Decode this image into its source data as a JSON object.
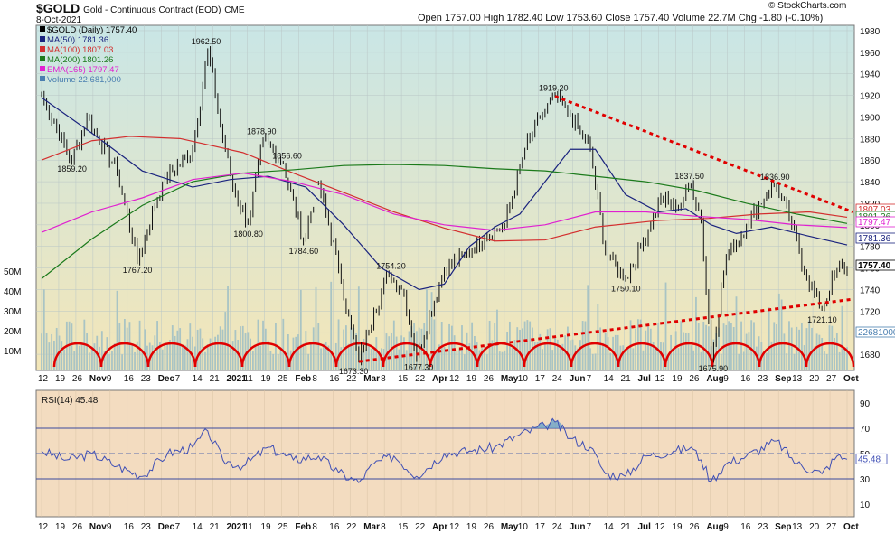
{
  "header": {
    "symbol": "$GOLD",
    "name": "Gold - Continuous Contract (EOD)",
    "exchange": "CME",
    "date": "8-Oct-2021",
    "source": "© StockCharts.com",
    "ohlc_text": "Open 1757.00  High 1782.40  Low 1753.60  Close 1757.40  Volume 22.7M  Chg -1.80 (-0.10%)"
  },
  "legend": [
    {
      "label": "$GOLD (Daily) 1757.40",
      "color": "#000000"
    },
    {
      "label": "MA(50) 1781.36",
      "color": "#1a237e"
    },
    {
      "label": "MA(100) 1807.03",
      "color": "#d32f2f"
    },
    {
      "label": "MA(200) 1801.26",
      "color": "#1b7a1b"
    },
    {
      "label": "EMA(165) 1797.47",
      "color": "#e020d0"
    },
    {
      "label": "Volume 22,681,000",
      "color": "#4a7fb0"
    }
  ],
  "colors": {
    "price_bg_top": "#c9e6e6",
    "price_bg_bottom": "#f3e6b8",
    "rsi_bg": "#f3dcc0",
    "trendline": "#e00000",
    "cycle_arcs": "#e00000",
    "volume": "#a9c4c4",
    "rsi_line": "#3f4fb5"
  },
  "chart_data": [
    {
      "type": "line",
      "title": "$GOLD Gold - Continuous Contract (EOD) CME",
      "ylabel": "",
      "ylim": [
        1665,
        1985
      ],
      "y_ticks": [
        1680,
        1700,
        1720,
        1740,
        1760,
        1780,
        1800,
        1820,
        1840,
        1860,
        1880,
        1900,
        1920,
        1940,
        1960,
        1980
      ],
      "x_tick_labels": [
        "12",
        "19",
        "26",
        "Nov",
        "9",
        "16",
        "23",
        "Dec",
        "7",
        "14",
        "21",
        "2021",
        "11",
        "19",
        "25",
        "Feb",
        "8",
        "16",
        "22",
        "Mar",
        "8",
        "15",
        "22",
        "Apr",
        "12",
        "19",
        "26",
        "May",
        "10",
        "17",
        "24",
        "Jun",
        "7",
        "14",
        "21",
        "Jul",
        "12",
        "19",
        "26",
        "Aug",
        "9",
        "16",
        "23",
        "Sep",
        "13",
        "20",
        "27",
        "Oct"
      ],
      "bold_ticks": [
        "Nov",
        "Dec",
        "2021",
        "Feb",
        "Mar",
        "Apr",
        "May",
        "Jun",
        "Jul",
        "Aug",
        "Sep",
        "Oct"
      ],
      "anchors": [
        {
          "x": 0,
          "y": 1920
        },
        {
          "x": 12,
          "y": 1859.2
        },
        {
          "x": 18,
          "y": 1900
        },
        {
          "x": 30,
          "y": 1850
        },
        {
          "x": 38,
          "y": 1767.2
        },
        {
          "x": 48,
          "y": 1840
        },
        {
          "x": 60,
          "y": 1870
        },
        {
          "x": 66,
          "y": 1962.5
        },
        {
          "x": 72,
          "y": 1880
        },
        {
          "x": 76,
          "y": 1835
        },
        {
          "x": 82,
          "y": 1800.8
        },
        {
          "x": 88,
          "y": 1878.9
        },
        {
          "x": 96,
          "y": 1856.6
        },
        {
          "x": 104,
          "y": 1784.6
        },
        {
          "x": 110,
          "y": 1840
        },
        {
          "x": 118,
          "y": 1760
        },
        {
          "x": 122,
          "y": 1715
        },
        {
          "x": 126,
          "y": 1673.3
        },
        {
          "x": 132,
          "y": 1720
        },
        {
          "x": 138,
          "y": 1754.2
        },
        {
          "x": 144,
          "y": 1738
        },
        {
          "x": 149,
          "y": 1677.3
        },
        {
          "x": 160,
          "y": 1760
        },
        {
          "x": 168,
          "y": 1770
        },
        {
          "x": 176,
          "y": 1790
        },
        {
          "x": 184,
          "y": 1800
        },
        {
          "x": 192,
          "y": 1870
        },
        {
          "x": 198,
          "y": 1900
        },
        {
          "x": 204,
          "y": 1919.2
        },
        {
          "x": 210,
          "y": 1900
        },
        {
          "x": 218,
          "y": 1870
        },
        {
          "x": 224,
          "y": 1775
        },
        {
          "x": 232,
          "y": 1750.1
        },
        {
          "x": 238,
          "y": 1780
        },
        {
          "x": 246,
          "y": 1825
        },
        {
          "x": 252,
          "y": 1815
        },
        {
          "x": 258,
          "y": 1837.5
        },
        {
          "x": 262,
          "y": 1805
        },
        {
          "x": 266,
          "y": 1675.9
        },
        {
          "x": 272,
          "y": 1770
        },
        {
          "x": 280,
          "y": 1800
        },
        {
          "x": 288,
          "y": 1830
        },
        {
          "x": 292,
          "y": 1836.9
        },
        {
          "x": 298,
          "y": 1800
        },
        {
          "x": 304,
          "y": 1750
        },
        {
          "x": 310,
          "y": 1721.1
        },
        {
          "x": 316,
          "y": 1760
        },
        {
          "x": 320,
          "y": 1757.4
        }
      ],
      "series": [
        {
          "name": "MA(50)",
          "anchors": [
            [
              0,
              1918
            ],
            [
              20,
              1885
            ],
            [
              40,
              1850
            ],
            [
              60,
              1835
            ],
            [
              75,
              1842
            ],
            [
              90,
              1845
            ],
            [
              105,
              1835
            ],
            [
              120,
              1800
            ],
            [
              135,
              1760
            ],
            [
              150,
              1740
            ],
            [
              160,
              1745
            ],
            [
              170,
              1780
            ],
            [
              180,
              1798
            ],
            [
              190,
              1810
            ],
            [
              200,
              1840
            ],
            [
              210,
              1870
            ],
            [
              220,
              1870
            ],
            [
              232,
              1828
            ],
            [
              245,
              1812
            ],
            [
              256,
              1815
            ],
            [
              266,
              1800
            ],
            [
              276,
              1792
            ],
            [
              290,
              1798
            ],
            [
              304,
              1790
            ],
            [
              320,
              1781.36
            ]
          ]
        },
        {
          "name": "MA(100)",
          "anchors": [
            [
              0,
              1860
            ],
            [
              20,
              1878
            ],
            [
              35,
              1882
            ],
            [
              55,
              1880
            ],
            [
              80,
              1867
            ],
            [
              100,
              1848
            ],
            [
              120,
              1830
            ],
            [
              140,
              1812
            ],
            [
              160,
              1797
            ],
            [
              180,
              1785
            ],
            [
              200,
              1786
            ],
            [
              220,
              1798
            ],
            [
              245,
              1804
            ],
            [
              265,
              1806
            ],
            [
              285,
              1810
            ],
            [
              305,
              1812
            ],
            [
              320,
              1807.03
            ]
          ]
        },
        {
          "name": "MA(200)",
          "anchors": [
            [
              0,
              1750
            ],
            [
              20,
              1787
            ],
            [
              40,
              1818
            ],
            [
              60,
              1840
            ],
            [
              80,
              1848
            ],
            [
              100,
              1851
            ],
            [
              120,
              1855
            ],
            [
              140,
              1856
            ],
            [
              160,
              1855
            ],
            [
              180,
              1852
            ],
            [
              200,
              1850
            ],
            [
              220,
              1845
            ],
            [
              240,
              1840
            ],
            [
              260,
              1832
            ],
            [
              280,
              1820
            ],
            [
              300,
              1810
            ],
            [
              320,
              1801.26
            ]
          ]
        },
        {
          "name": "EMA(165)",
          "anchors": [
            [
              0,
              1793
            ],
            [
              20,
              1812
            ],
            [
              40,
              1825
            ],
            [
              60,
              1842
            ],
            [
              80,
              1848
            ],
            [
              100,
              1840
            ],
            [
              120,
              1828
            ],
            [
              140,
              1810
            ],
            [
              160,
              1800
            ],
            [
              180,
              1795
            ],
            [
              200,
              1800
            ],
            [
              220,
              1812
            ],
            [
              240,
              1812
            ],
            [
              260,
              1808
            ],
            [
              280,
              1805
            ],
            [
              300,
              1800
            ],
            [
              320,
              1797.47
            ]
          ]
        }
      ],
      "volume_ticks": [
        "10M",
        "20M",
        "30M",
        "40M",
        "50M"
      ],
      "volume_marker": "22681000",
      "price_labels": [
        "1962.50",
        "1919.20",
        "1878.90",
        "1859.20",
        "1856.60",
        "1837.50",
        "1836.90",
        "1800.80",
        "1784.60",
        "1767.20",
        "1754.20",
        "1750.10",
        "1721.10",
        "1675.90",
        "1677.30",
        "1673.30"
      ],
      "right_labels": [
        {
          "text": "1807.03",
          "color": "#d32f2f"
        },
        {
          "text": "1801.26",
          "color": "#1b7a1b"
        },
        {
          "text": "1797.47",
          "color": "#e020d0"
        },
        {
          "text": "1781.36",
          "color": "#1a237e"
        },
        {
          "text": "1757.40",
          "color": "#000000"
        },
        {
          "text": "22681000",
          "color": "#4a7fb0"
        }
      ]
    },
    {
      "type": "line",
      "title": "RSI(14) 45.48",
      "ylim": [
        0,
        100
      ],
      "y_ticks": [
        10,
        30,
        50,
        70,
        90
      ],
      "levels": [
        70,
        50,
        30
      ],
      "last_value": "45.48",
      "anchors": [
        [
          0,
          52
        ],
        [
          10,
          45
        ],
        [
          20,
          50
        ],
        [
          30,
          40
        ],
        [
          40,
          32
        ],
        [
          50,
          50
        ],
        [
          60,
          55
        ],
        [
          66,
          68
        ],
        [
          72,
          45
        ],
        [
          80,
          40
        ],
        [
          90,
          55
        ],
        [
          100,
          45
        ],
        [
          110,
          48
        ],
        [
          118,
          35
        ],
        [
          126,
          27
        ],
        [
          132,
          42
        ],
        [
          140,
          48
        ],
        [
          149,
          32
        ],
        [
          160,
          50
        ],
        [
          170,
          52
        ],
        [
          180,
          55
        ],
        [
          190,
          65
        ],
        [
          200,
          72
        ],
        [
          204,
          75
        ],
        [
          210,
          62
        ],
        [
          218,
          55
        ],
        [
          224,
          34
        ],
        [
          232,
          32
        ],
        [
          240,
          48
        ],
        [
          252,
          52
        ],
        [
          258,
          55
        ],
        [
          262,
          45
        ],
        [
          266,
          28
        ],
        [
          272,
          42
        ],
        [
          280,
          48
        ],
        [
          292,
          60
        ],
        [
          300,
          42
        ],
        [
          310,
          34
        ],
        [
          316,
          48
        ],
        [
          320,
          45.48
        ]
      ]
    }
  ]
}
